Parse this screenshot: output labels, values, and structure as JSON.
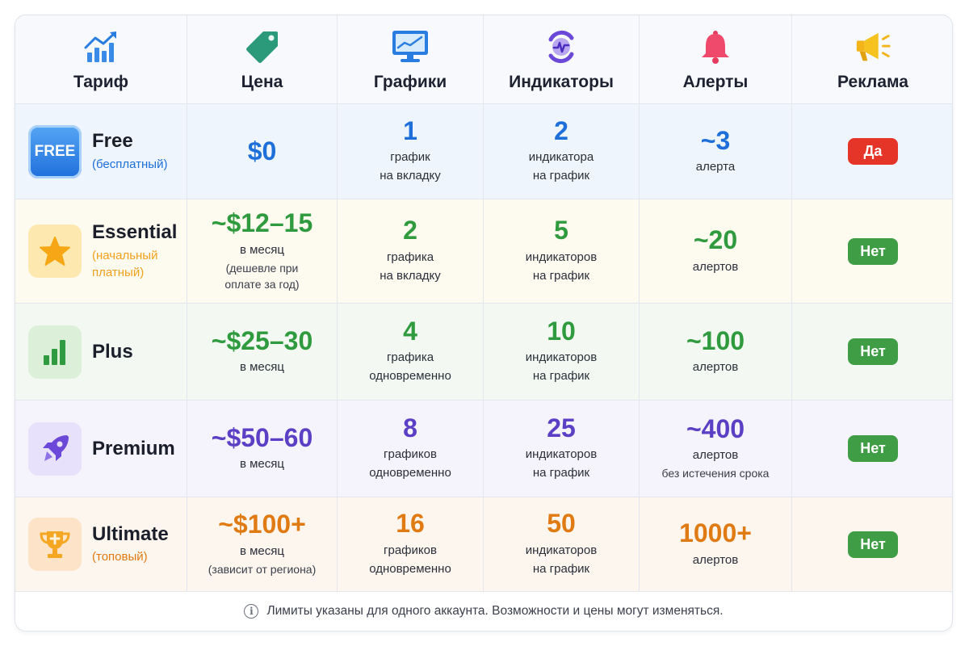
{
  "colors": {
    "blue": "#1e6fd9",
    "orange": "#f0a11c",
    "green": "#2f9b3e",
    "purple": "#5b3fc4",
    "ultimate": "#e07a12",
    "badge_yes": "#e53528",
    "badge_no": "#3f9e45"
  },
  "headers": [
    {
      "label": "Тариф",
      "icon": "trend-chart-icon"
    },
    {
      "label": "Цена",
      "icon": "price-tag-icon"
    },
    {
      "label": "Графики",
      "icon": "monitor-chart-icon"
    },
    {
      "label": "Индикаторы",
      "icon": "indicator-icon"
    },
    {
      "label": "Алерты",
      "icon": "bell-icon"
    },
    {
      "label": "Реклама",
      "icon": "megaphone-icon"
    }
  ],
  "rows": [
    {
      "tier": {
        "name": "Free",
        "sub": "(бесплатный)",
        "icon": "free-icon",
        "icon_text": "FREE"
      },
      "price": {
        "value": "$0",
        "line1": "",
        "line2": ""
      },
      "charts": {
        "value": "1",
        "line1": "график",
        "line2": "на вкладку"
      },
      "indicators": {
        "value": "2",
        "line1": "индикатора",
        "line2": "на график"
      },
      "alerts": {
        "value": "~3",
        "line1": "алерта",
        "line2": ""
      },
      "ads": "Да"
    },
    {
      "tier": {
        "name": "Essential",
        "sub": "(начальный\nплатный)",
        "icon": "star-icon"
      },
      "price": {
        "value": "~$12–15",
        "line1": "в месяц",
        "line2": "(дешевле при\nоплате за год)"
      },
      "charts": {
        "value": "2",
        "line1": "графика",
        "line2": "на вкладку"
      },
      "indicators": {
        "value": "5",
        "line1": "индикаторов",
        "line2": "на график"
      },
      "alerts": {
        "value": "~20",
        "line1": "алертов",
        "line2": ""
      },
      "ads": "Нет"
    },
    {
      "tier": {
        "name": "Plus",
        "sub": "",
        "icon": "bar-chart-icon"
      },
      "price": {
        "value": "~$25–30",
        "line1": "в месяц",
        "line2": ""
      },
      "charts": {
        "value": "4",
        "line1": "графика",
        "line2": "одновременно"
      },
      "indicators": {
        "value": "10",
        "line1": "индикаторов",
        "line2": "на график"
      },
      "alerts": {
        "value": "~100",
        "line1": "алертов",
        "line2": ""
      },
      "ads": "Нет"
    },
    {
      "tier": {
        "name": "Premium",
        "sub": "",
        "icon": "rocket-icon"
      },
      "price": {
        "value": "~$50–60",
        "line1": "в месяц",
        "line2": ""
      },
      "charts": {
        "value": "8",
        "line1": "графиков",
        "line2": "одновременно"
      },
      "indicators": {
        "value": "25",
        "line1": "индикаторов",
        "line2": "на график"
      },
      "alerts": {
        "value": "~400",
        "line1": "алертов",
        "line2": "без истечения срока"
      },
      "ads": "Нет"
    },
    {
      "tier": {
        "name": "Ultimate",
        "sub": "(топовый)",
        "icon": "trophy-icon"
      },
      "price": {
        "value": "~$100+",
        "line1": "в месяц",
        "line2": "(зависит от региона)"
      },
      "charts": {
        "value": "16",
        "line1": "графиков",
        "line2": "одновременно"
      },
      "indicators": {
        "value": "50",
        "line1": "индикаторов",
        "line2": "на график"
      },
      "alerts": {
        "value": "1000+",
        "line1": "алертов",
        "line2": ""
      },
      "ads": "Нет"
    }
  ],
  "footer": {
    "icon": "info-icon",
    "text": "Лимиты указаны для одного аккаунта. Возможности и цены могут изменяться."
  }
}
